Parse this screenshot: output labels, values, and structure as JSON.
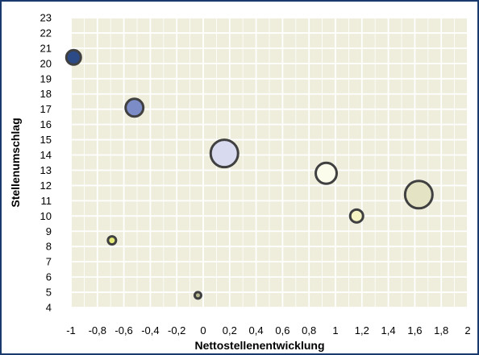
{
  "chart_data": {
    "type": "scatter",
    "subtype": "bubble",
    "xlabel": "Nettostellenentwicklung",
    "ylabel": "Stellenumschlag",
    "xlim": [
      -1,
      2
    ],
    "ylim": [
      4,
      23
    ],
    "x_ticks": [
      "-1",
      "-0,8",
      "-0,6",
      "-0,4",
      "-0,2",
      "0",
      "0,2",
      "0,4",
      "0,6",
      "0,8",
      "1",
      "1,2",
      "1,4",
      "1,6",
      "1,8",
      "2"
    ],
    "y_ticks": [
      "4",
      "5",
      "6",
      "7",
      "8",
      "9",
      "10",
      "11",
      "12",
      "13",
      "14",
      "15",
      "16",
      "17",
      "18",
      "19",
      "20",
      "21",
      "22",
      "23"
    ],
    "grid": true,
    "plot_background": "#efeedd",
    "grid_color": "#ffffff",
    "outline_color": "#404040",
    "points": [
      {
        "x": -0.98,
        "y": 20.4,
        "size": 9,
        "color": "#2c4a86"
      },
      {
        "x": -0.52,
        "y": 17.1,
        "size": 11,
        "color": "#7c8cc6"
      },
      {
        "x": -0.69,
        "y": 8.4,
        "size": 5,
        "color": "#e6ea78"
      },
      {
        "x": -0.04,
        "y": 4.8,
        "size": 4,
        "color": "#b8b890"
      },
      {
        "x": 0.16,
        "y": 14.1,
        "size": 17,
        "color": "#d8daf0"
      },
      {
        "x": 0.93,
        "y": 12.8,
        "size": 13,
        "color": "#fcfcec"
      },
      {
        "x": 1.16,
        "y": 10.0,
        "size": 8,
        "color": "#f6f4c2"
      },
      {
        "x": 1.63,
        "y": 11.4,
        "size": 17,
        "color": "#e4e4c4"
      }
    ]
  }
}
